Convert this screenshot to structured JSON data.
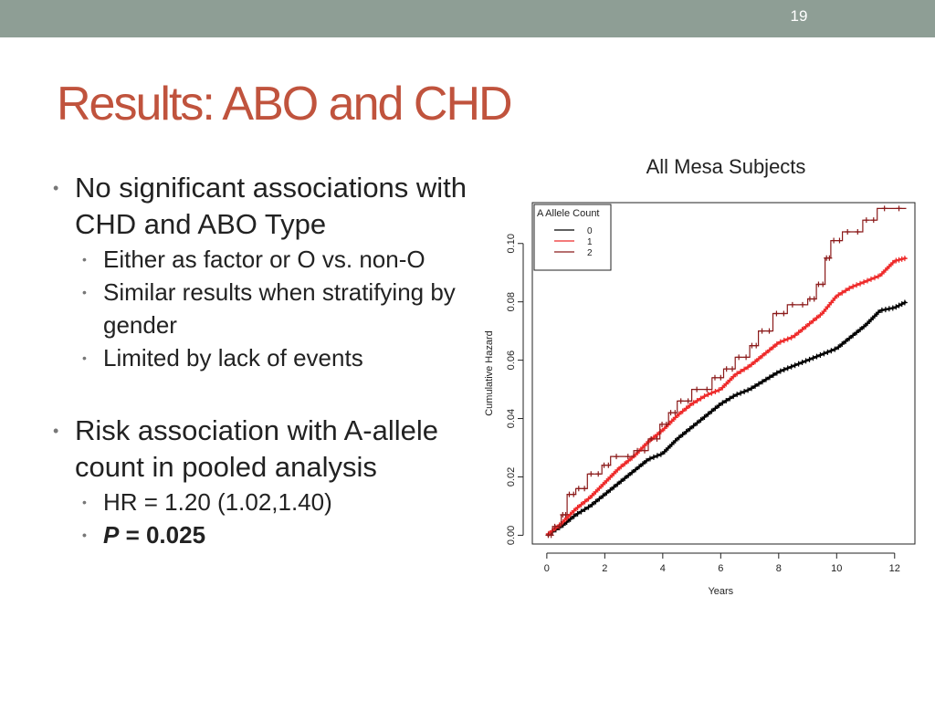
{
  "slide": {
    "number": "19",
    "title": "Results: ABO and CHD",
    "bullets": {
      "b1": {
        "text": "No significant associations with CHD and ABO Type"
      },
      "b1_subs": [
        "Either as factor or O vs. non-O",
        "Similar results when stratifying by gender",
        "Limited by lack of events"
      ],
      "b2": {
        "text": "Risk association with A-allele count in pooled analysis"
      },
      "b2_sub1": "HR = 1.20 (1.02,1.40)",
      "b2_sub2_label": "P",
      "b2_sub2_value": " = 0.025"
    }
  },
  "chart_title": "All Mesa Subjects",
  "chart_data": {
    "type": "line",
    "title": "All Mesa Subjects",
    "xlabel": "Years",
    "ylabel": "Cumulative Hazard",
    "xlim": [
      -0.5,
      12.7
    ],
    "ylim": [
      -0.003,
      0.114
    ],
    "x_ticks": [
      0,
      2,
      4,
      6,
      8,
      10,
      12
    ],
    "y_ticks": [
      0.0,
      0.02,
      0.04,
      0.06,
      0.08,
      0.1
    ],
    "y_tick_labels": [
      "0.00",
      "0.02",
      "0.04",
      "0.06",
      "0.08",
      "0.10"
    ],
    "grid": false,
    "legend_title": "A Allele Count",
    "legend_position": "top-left",
    "series": [
      {
        "name": "0",
        "color": "#000000",
        "x": [
          0,
          0.5,
          1,
          1.5,
          2,
          2.5,
          3,
          3.5,
          4,
          4.5,
          5,
          5.5,
          6,
          6.5,
          7,
          7.5,
          8,
          8.5,
          9,
          9.5,
          10,
          10.5,
          11,
          11.5,
          12,
          12.4
        ],
        "y": [
          0,
          0.003,
          0.007,
          0.01,
          0.014,
          0.018,
          0.022,
          0.026,
          0.028,
          0.033,
          0.037,
          0.041,
          0.045,
          0.048,
          0.05,
          0.053,
          0.056,
          0.058,
          0.06,
          0.062,
          0.064,
          0.068,
          0.072,
          0.077,
          0.078,
          0.08
        ]
      },
      {
        "name": "1",
        "color": "#ee2a2a",
        "x": [
          0,
          0.5,
          1,
          1.5,
          2,
          2.5,
          3,
          3.5,
          4,
          4.5,
          5,
          5.5,
          6,
          6.5,
          7,
          7.5,
          8,
          8.5,
          9,
          9.5,
          10,
          10.5,
          11,
          11.5,
          12,
          12.4
        ],
        "y": [
          0,
          0.004,
          0.009,
          0.013,
          0.018,
          0.023,
          0.027,
          0.032,
          0.036,
          0.041,
          0.045,
          0.048,
          0.05,
          0.055,
          0.058,
          0.062,
          0.066,
          0.068,
          0.072,
          0.076,
          0.082,
          0.085,
          0.087,
          0.089,
          0.094,
          0.095
        ]
      },
      {
        "name": "2",
        "color": "#8b1a1a",
        "step": true,
        "x": [
          0,
          0.2,
          0.5,
          0.7,
          1.0,
          1.4,
          1.9,
          2.2,
          3.0,
          3.5,
          3.9,
          4.2,
          4.5,
          5.0,
          5.7,
          6.1,
          6.5,
          7.0,
          7.3,
          7.8,
          8.3,
          9.0,
          9.3,
          9.6,
          9.8,
          10.2,
          10.9,
          11.4,
          12.4
        ],
        "y": [
          0,
          0.003,
          0.007,
          0.014,
          0.016,
          0.021,
          0.024,
          0.027,
          0.029,
          0.033,
          0.038,
          0.042,
          0.046,
          0.05,
          0.054,
          0.057,
          0.061,
          0.065,
          0.07,
          0.076,
          0.079,
          0.081,
          0.086,
          0.095,
          0.101,
          0.104,
          0.108,
          0.112,
          0.112
        ]
      }
    ]
  }
}
